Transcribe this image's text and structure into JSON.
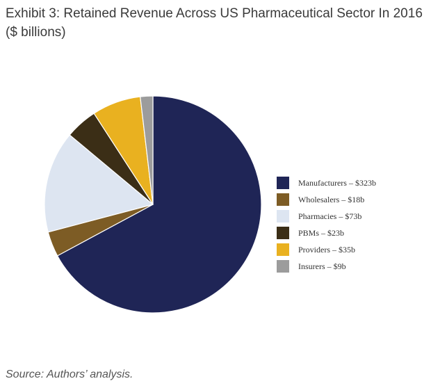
{
  "title_line1": "Exhibit 3: Retained Revenue Across US Pharmaceutical Sector In 2016",
  "title_line2": "($ billions)",
  "source": "Source: Authors’ analysis.",
  "chart_data": {
    "type": "pie",
    "legend_position": "right",
    "slices": [
      {
        "label": "Manufacturers – $323b",
        "value": 323,
        "color": "#1f2556"
      },
      {
        "label": "Wholesalers – $18b",
        "value": 18,
        "color": "#7d5c25"
      },
      {
        "label": "Pharmacies – $73b",
        "value": 73,
        "color": "#dde5f1"
      },
      {
        "label": "PBMs – $23b",
        "value": 23,
        "color": "#3b2e16"
      },
      {
        "label": "Providers – $35b",
        "value": 35,
        "color": "#e9b120"
      },
      {
        "label": "Insurers – $9b",
        "value": 9,
        "color": "#9c9c9c"
      }
    ]
  }
}
